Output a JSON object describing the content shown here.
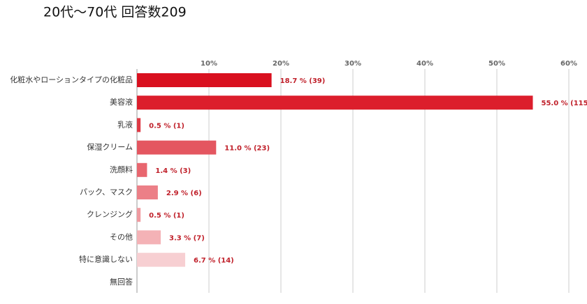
{
  "chart_data": {
    "type": "bar",
    "orientation": "horizontal",
    "title": "20代～70代  回答数209",
    "categories": [
      "化粧水やローションタイプの化粧品",
      "美容液",
      "乳液",
      "保湿クリーム",
      "洗顔料",
      "パック、マスク",
      "クレンジング",
      "その他",
      "特に意識しない",
      "無回答"
    ],
    "values": [
      18.7,
      55.0,
      0.5,
      11.0,
      1.4,
      2.9,
      0.5,
      3.3,
      6.7,
      0
    ],
    "value_labels": [
      "18.7 % (39)",
      "55.0 % (115)",
      "0.5 % (1)",
      "11.0 % (23)",
      "1.4 % (3)",
      "2.9 % (6)",
      "0.5 % (1)",
      "3.3 % (7)",
      "6.7 % (14)",
      null
    ],
    "colors": [
      "#d9101f",
      "#dc1e2c",
      "#df3a45",
      "#e45660",
      "#e8666f",
      "#ec7f87",
      "#f09aa0",
      "#f4b2b6",
      "#f7cfd2",
      "#f9e0e2"
    ],
    "xlim": [
      0,
      60
    ],
    "xticks": [
      {
        "value": 10,
        "label": "10%"
      },
      {
        "value": 20,
        "label": "20%"
      },
      {
        "value": 30,
        "label": "30%"
      },
      {
        "value": 40,
        "label": "40%"
      },
      {
        "value": 50,
        "label": "50%"
      },
      {
        "value": 60,
        "label": "60%"
      }
    ],
    "grid": true
  }
}
